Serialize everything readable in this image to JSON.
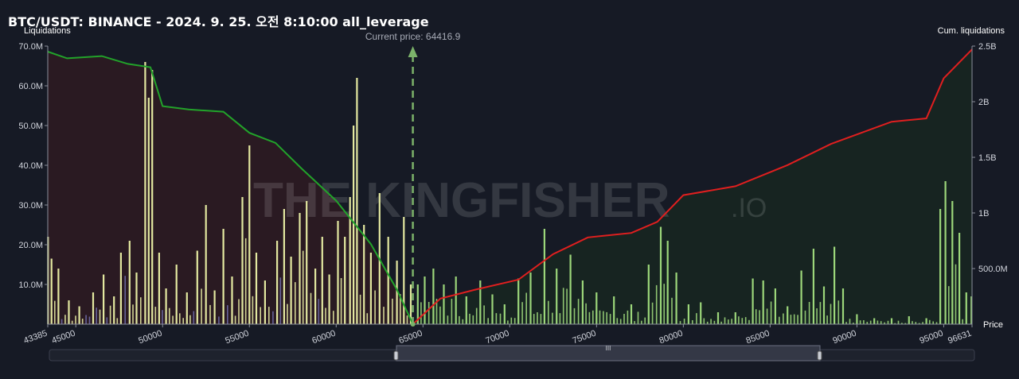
{
  "header": {
    "title": "BTC/USDT: BINANCE - 2024. 9. 25. 오전 8:10:00 all_leverage"
  },
  "watermark": {
    "text": "THE KINGFISHER",
    "suffix": ".IO"
  },
  "colors": {
    "background": "#161a25",
    "long_area": "#2a1a22",
    "short_area": "#172421",
    "long_line": "#22a32a",
    "short_line": "#e01f1f",
    "bar_yellow": "#e3e8a0",
    "bar_green": "#9cd67a",
    "bar_purple": "#6e6aa6",
    "current_price_line": "#7cb36a"
  },
  "chart_data": {
    "type": "bar",
    "title": "BTC/USDT: BINANCE - 2024. 9. 25. 오전 8:10:00 all_leverage",
    "ylabel": "Liquidations",
    "y2label": "Cum. liquidations",
    "xlabel": "Price",
    "xlim": [
      43385,
      96631
    ],
    "ylim": [
      0,
      70000000
    ],
    "y2lim": [
      0,
      2500000000
    ],
    "x_ticks": [
      "43385",
      "45000",
      "50000",
      "55000",
      "60000",
      "65000",
      "70000",
      "75000",
      "80000",
      "85000",
      "90000",
      "95000",
      "96631"
    ],
    "y_ticks": [
      "10.0M",
      "20.0M",
      "30.0M",
      "40.0M",
      "50.0M",
      "60.0M",
      "70.0M"
    ],
    "y2_ticks": [
      "500.0M",
      "1B",
      "1.5B",
      "2B",
      "2.5B"
    ],
    "current_price": 64416.9,
    "current_price_label": "Current price: 64416.9",
    "grid": false,
    "series": [
      {
        "kind": "liquidation_bars_long_side",
        "points": [
          [
            43400,
            22000000
          ],
          [
            43600,
            16500000
          ],
          [
            44000,
            14000000
          ],
          [
            44600,
            6000000
          ],
          [
            45200,
            4500000
          ],
          [
            46000,
            8000000
          ],
          [
            46600,
            12500000
          ],
          [
            47200,
            7000000
          ],
          [
            47600,
            18000000
          ],
          [
            48100,
            21000000
          ],
          [
            48500,
            13000000
          ],
          [
            49000,
            66000000
          ],
          [
            49200,
            57000000
          ],
          [
            49400,
            64000000
          ],
          [
            49800,
            18000000
          ],
          [
            50200,
            9000000
          ],
          [
            50800,
            15000000
          ],
          [
            51400,
            8000000
          ],
          [
            52000,
            18500000
          ],
          [
            52500,
            30000000
          ],
          [
            53000,
            8500000
          ],
          [
            53500,
            24000000
          ],
          [
            54000,
            12000000
          ],
          [
            54600,
            32000000
          ],
          [
            55000,
            45000000
          ],
          [
            55400,
            18000000
          ],
          [
            55900,
            11000000
          ],
          [
            56600,
            21000000
          ],
          [
            57000,
            29000000
          ],
          [
            57400,
            17000000
          ],
          [
            57900,
            28000000
          ],
          [
            58300,
            31000000
          ],
          [
            58800,
            14000000
          ],
          [
            59200,
            22000000
          ],
          [
            59600,
            12500000
          ],
          [
            60100,
            26000000
          ],
          [
            60500,
            22000000
          ],
          [
            60800,
            32000000
          ],
          [
            61000,
            50000000
          ],
          [
            61200,
            62000000
          ],
          [
            61600,
            25000000
          ],
          [
            62000,
            18000000
          ],
          [
            62500,
            33000000
          ],
          [
            63000,
            22000000
          ],
          [
            63500,
            16000000
          ],
          [
            63900,
            27000000
          ],
          [
            64300,
            10000000
          ]
        ]
      },
      {
        "kind": "liquidation_bars_short_side",
        "points": [
          [
            64700,
            10000000
          ],
          [
            65100,
            12000000
          ],
          [
            65600,
            14000000
          ],
          [
            66200,
            10000000
          ],
          [
            66900,
            12000000
          ],
          [
            67500,
            7000000
          ],
          [
            68300,
            11000000
          ],
          [
            69000,
            7500000
          ],
          [
            69700,
            5000000
          ],
          [
            70500,
            11500000
          ],
          [
            71200,
            13000000
          ],
          [
            72000,
            24000000
          ],
          [
            72700,
            14000000
          ],
          [
            73500,
            17500000
          ],
          [
            74200,
            11000000
          ],
          [
            75000,
            8000000
          ],
          [
            76000,
            7000000
          ],
          [
            77000,
            5000000
          ],
          [
            78000,
            15000000
          ],
          [
            78700,
            24500000
          ],
          [
            79100,
            21000000
          ],
          [
            79600,
            13000000
          ],
          [
            80300,
            5000000
          ],
          [
            81000,
            5500000
          ],
          [
            82000,
            3000000
          ],
          [
            83000,
            3000000
          ],
          [
            84000,
            11500000
          ],
          [
            84600,
            11000000
          ],
          [
            85300,
            9000000
          ],
          [
            86000,
            4500000
          ],
          [
            86800,
            13500000
          ],
          [
            87500,
            19000000
          ],
          [
            88100,
            9500000
          ],
          [
            88700,
            19500000
          ],
          [
            89200,
            9000000
          ],
          [
            90000,
            2500000
          ],
          [
            91000,
            1500000
          ],
          [
            92000,
            1500000
          ],
          [
            93000,
            2000000
          ],
          [
            94000,
            1500000
          ],
          [
            94800,
            29000000
          ],
          [
            95100,
            36000000
          ],
          [
            95500,
            31000000
          ],
          [
            95900,
            23000000
          ],
          [
            96300,
            8000000
          ],
          [
            96600,
            7000000
          ]
        ]
      },
      {
        "kind": "cumulative_long",
        "points": [
          [
            43385,
            2450000000
          ],
          [
            44500,
            2390000000
          ],
          [
            46500,
            2410000000
          ],
          [
            48000,
            2340000000
          ],
          [
            49300,
            2310000000
          ],
          [
            50000,
            1960000000
          ],
          [
            51500,
            1930000000
          ],
          [
            53500,
            1910000000
          ],
          [
            55000,
            1720000000
          ],
          [
            56500,
            1630000000
          ],
          [
            58000,
            1400000000
          ],
          [
            60000,
            1110000000
          ],
          [
            62000,
            720000000
          ],
          [
            63500,
            310000000
          ],
          [
            64417,
            0
          ]
        ]
      },
      {
        "kind": "cumulative_short",
        "points": [
          [
            64417,
            0
          ],
          [
            66000,
            230000000
          ],
          [
            68000,
            310000000
          ],
          [
            70500,
            400000000
          ],
          [
            72500,
            630000000
          ],
          [
            74500,
            780000000
          ],
          [
            77000,
            820000000
          ],
          [
            78500,
            920000000
          ],
          [
            80000,
            1160000000
          ],
          [
            83000,
            1240000000
          ],
          [
            86000,
            1430000000
          ],
          [
            88500,
            1620000000
          ],
          [
            92000,
            1820000000
          ],
          [
            94000,
            1850000000
          ],
          [
            95000,
            2210000000
          ],
          [
            96631,
            2470000000
          ]
        ]
      }
    ]
  }
}
